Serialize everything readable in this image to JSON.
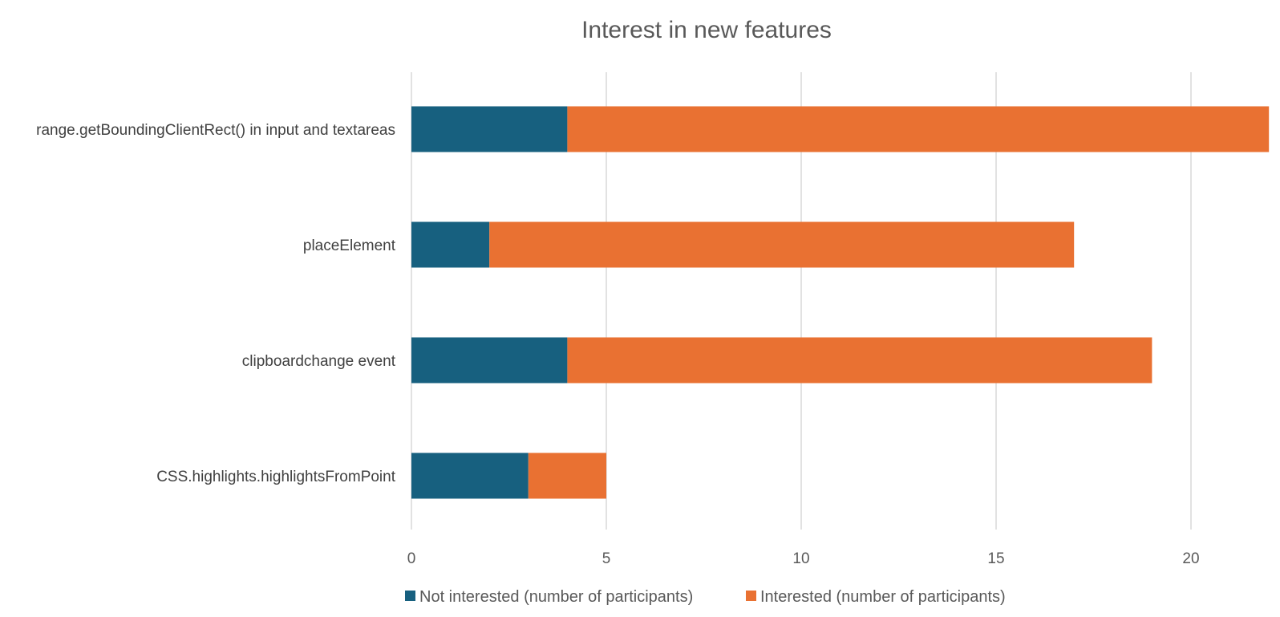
{
  "chart_data": {
    "type": "bar",
    "orientation": "horizontal",
    "stacked": true,
    "title": "Interest in new features",
    "categories": [
      "range.getBoundingClientRect() in input and textareas",
      "placeElement",
      "clipboardchange event",
      "CSS.highlights.highlightsFromPoint"
    ],
    "series": [
      {
        "name": "Not interested (number of participants)",
        "color": "#17607f",
        "values": [
          4,
          2,
          4,
          3
        ]
      },
      {
        "name": "Interested (number of participants)",
        "color": "#e97132",
        "values": [
          18,
          15,
          15,
          2
        ]
      }
    ],
    "x_ticks": [
      "0",
      "5",
      "10",
      "15",
      "20"
    ],
    "xlim": [
      0,
      22
    ],
    "grid": true,
    "legend": "bottom"
  }
}
